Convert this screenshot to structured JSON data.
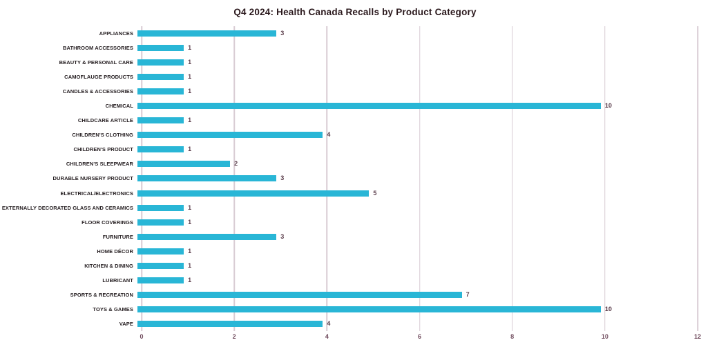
{
  "title": "Q4 2024: Health Canada Recalls by Product Category",
  "chart_data": {
    "type": "bar",
    "orientation": "horizontal",
    "title": "Q4 2024: Health Canada Recalls by Product Category",
    "xlabel": "",
    "ylabel": "",
    "xlim": [
      0,
      12
    ],
    "x_ticks": [
      0,
      2,
      4,
      6,
      8,
      10,
      12
    ],
    "grid": true,
    "data_labels": true,
    "categories": [
      "APPLIANCES",
      "BATHROOM ACCESSORIES",
      "BEAUTY & PERSONAL CARE",
      "CAMOFLAUGE PRODUCTS",
      "CANDLES & ACCESSORIES",
      "CHEMICAL",
      "CHILDCARE ARTICLE",
      "CHILDREN'S CLOTHING",
      "CHILDREN'S PRODUCT",
      "CHILDREN'S SLEEPWEAR",
      "DURABLE NURSERY PRODUCT",
      "ELECTRICAL/ELECTRONICS",
      "EXTERNALLY DECORATED GLASS AND CERAMICS",
      "FLOOR COVERINGS",
      "FURNITURE",
      "HOME DÉCOR",
      "KITCHEN & DINING",
      "LUBRICANT",
      "SPORTS & RECREATION",
      "TOYS & GAMES",
      "VAPE"
    ],
    "values": [
      3,
      1,
      1,
      1,
      1,
      10,
      1,
      4,
      1,
      2,
      3,
      5,
      1,
      1,
      3,
      1,
      1,
      1,
      7,
      10,
      4
    ]
  },
  "colors": {
    "background": "#ffffff",
    "bar": "#29b6d6",
    "gridline": "#d8ccd3",
    "title_text": "#2a181c",
    "category_text": "#231c1f",
    "value_text": "#5a3c4a",
    "tick_text": "#6f4a5c"
  }
}
